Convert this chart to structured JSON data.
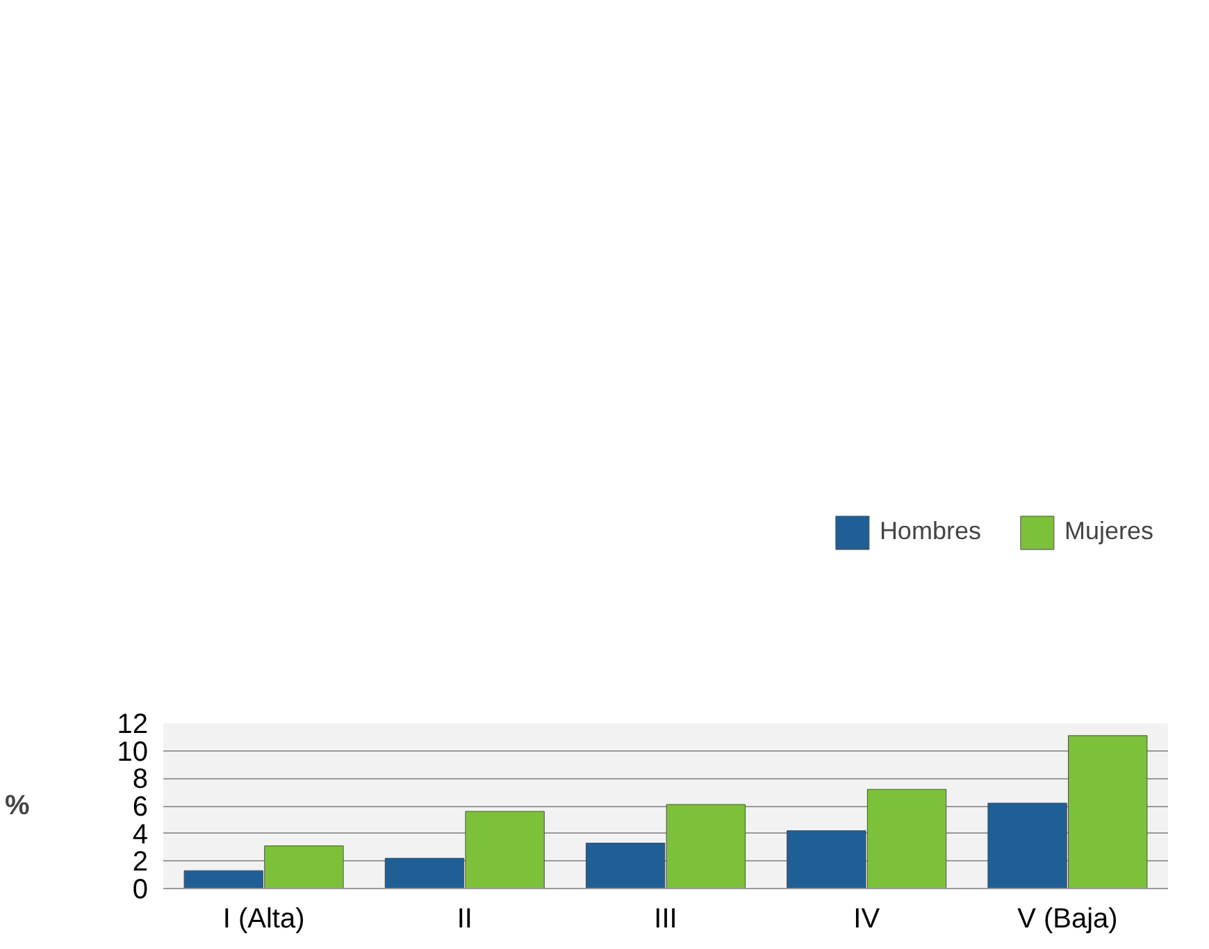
{
  "chart_data": {
    "type": "bar",
    "ylabel": "%",
    "categories": [
      "I (Alta)",
      "II",
      "III",
      "IV",
      "V (Baja)"
    ],
    "series": [
      {
        "name": "Hombres",
        "color": "#1f5f95",
        "values": [
          1.3,
          2.2,
          3.3,
          4.2,
          6.2
        ]
      },
      {
        "name": "Mujeres",
        "color": "#7dc13a",
        "values": [
          3.1,
          5.6,
          6.1,
          7.2,
          11.1
        ]
      }
    ],
    "ylim": [
      0,
      12
    ],
    "yticks": [
      0,
      2,
      4,
      6,
      8,
      10,
      12
    ],
    "grid": "y",
    "legend": "top right"
  }
}
